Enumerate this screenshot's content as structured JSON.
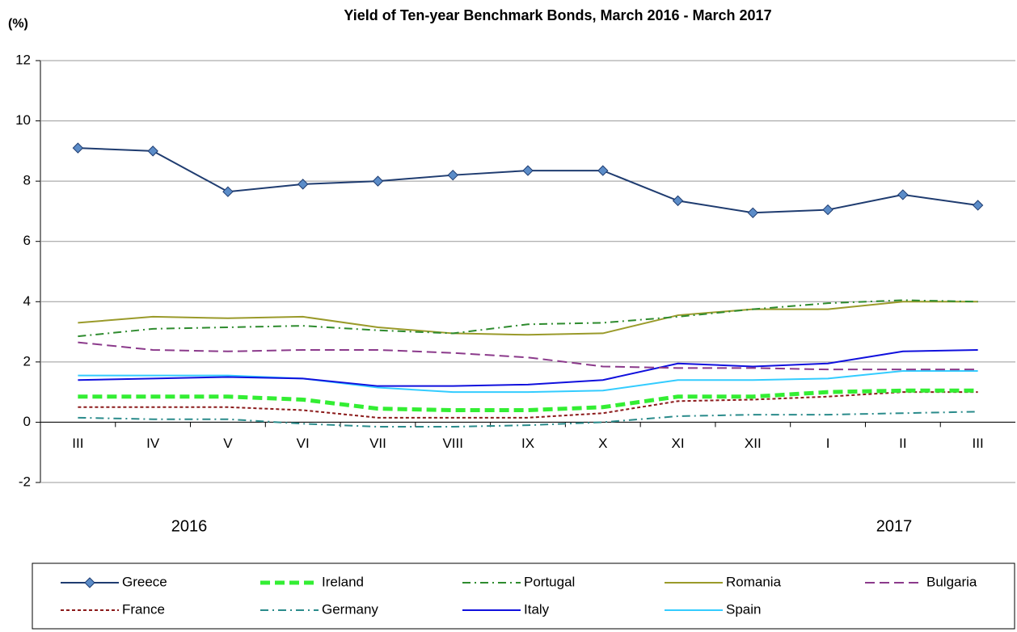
{
  "chart_data": {
    "type": "line",
    "title": "Yield of Ten-year Benchmark Bonds, March 2016 - March 2017",
    "y_label": "(%)",
    "annotations": [
      "2016",
      "2017"
    ],
    "categories": [
      "III",
      "IV",
      "V",
      "VI",
      "VII",
      "VIII",
      "IX",
      "X",
      "XI",
      "XII",
      "I",
      "II",
      "III"
    ],
    "ylim": [
      -2,
      12
    ],
    "yticks": [
      -2,
      0,
      2,
      4,
      6,
      8,
      10,
      12
    ],
    "grid": true,
    "legend": "bottom",
    "series": [
      {
        "name": "Greece",
        "color": "#1f3c70",
        "style": "solid",
        "marker": "diamond",
        "values": [
          9.1,
          9.0,
          7.65,
          7.9,
          8.0,
          8.2,
          8.35,
          8.35,
          7.35,
          6.95,
          7.05,
          7.55,
          7.2
        ]
      },
      {
        "name": "Ireland",
        "color": "#33ee33",
        "style": "dashed-thick",
        "values": [
          0.85,
          0.85,
          0.85,
          0.75,
          0.45,
          0.4,
          0.4,
          0.5,
          0.85,
          0.85,
          1.0,
          1.05,
          1.05
        ]
      },
      {
        "name": "Portugal",
        "color": "#2e8b2e",
        "style": "dashdot",
        "values": [
          2.85,
          3.1,
          3.15,
          3.2,
          3.05,
          2.95,
          3.25,
          3.3,
          3.5,
          3.75,
          3.95,
          4.05,
          4.0
        ]
      },
      {
        "name": "Romania",
        "color": "#9a9a2a",
        "style": "solid",
        "values": [
          3.3,
          3.5,
          3.45,
          3.5,
          3.15,
          2.95,
          2.9,
          2.95,
          3.55,
          3.75,
          3.75,
          4.0,
          4.0
        ]
      },
      {
        "name": "Bulgaria",
        "color": "#8b3a8b",
        "style": "dashed",
        "values": [
          2.65,
          2.4,
          2.35,
          2.4,
          2.4,
          2.3,
          2.15,
          1.85,
          1.8,
          1.8,
          1.75,
          1.75,
          1.75
        ]
      },
      {
        "name": "France",
        "color": "#8b1a1a",
        "style": "dotted",
        "values": [
          0.5,
          0.5,
          0.5,
          0.4,
          0.15,
          0.15,
          0.15,
          0.3,
          0.7,
          0.75,
          0.85,
          1.0,
          1.0
        ]
      },
      {
        "name": "Germany",
        "color": "#2a8b8b",
        "style": "dashdot",
        "values": [
          0.15,
          0.1,
          0.1,
          -0.05,
          -0.15,
          -0.15,
          -0.1,
          0.0,
          0.2,
          0.25,
          0.25,
          0.3,
          0.35
        ]
      },
      {
        "name": "Italy",
        "color": "#1010dd",
        "style": "solid",
        "values": [
          1.4,
          1.45,
          1.5,
          1.45,
          1.2,
          1.2,
          1.25,
          1.4,
          1.95,
          1.85,
          1.95,
          2.35,
          2.4
        ]
      },
      {
        "name": "Spain",
        "color": "#33ccff",
        "style": "solid",
        "values": [
          1.55,
          1.55,
          1.55,
          1.45,
          1.15,
          1.0,
          1.0,
          1.05,
          1.4,
          1.4,
          1.45,
          1.7,
          1.7
        ]
      }
    ]
  }
}
